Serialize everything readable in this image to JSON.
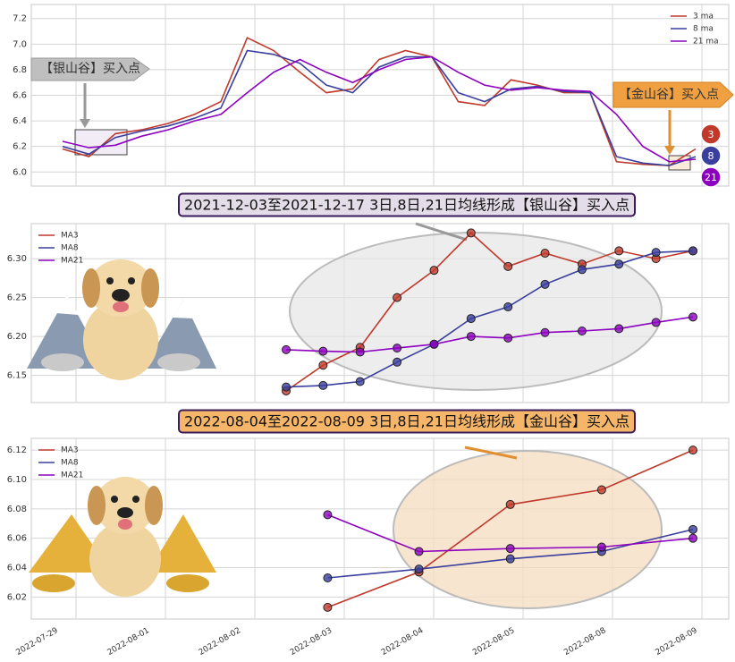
{
  "chart_data": [
    {
      "type": "line",
      "grid": true,
      "legend": "upper right",
      "ylim": [
        5.89,
        7.31
      ],
      "yticks": [
        {
          "value": 6.0,
          "label": "6.0"
        },
        6.2,
        6.4,
        6.6,
        6.8,
        {
          "value": 7.0,
          "label": "7.0"
        },
        7.2
      ],
      "series": [
        {
          "name": "3 ma",
          "color": "#c0392b",
          "values": [
            6.18,
            6.12,
            6.3,
            6.33,
            6.38,
            6.45,
            6.55,
            7.05,
            6.95,
            6.78,
            6.62,
            6.65,
            6.88,
            6.95,
            6.9,
            6.55,
            6.52,
            6.72,
            6.68,
            6.62,
            6.62,
            6.08,
            6.06,
            6.05,
            6.18
          ]
        },
        {
          "name": "8 ma",
          "color": "#3a3f9e",
          "values": [
            6.2,
            6.14,
            6.27,
            6.32,
            6.36,
            6.42,
            6.5,
            6.95,
            6.92,
            6.85,
            6.68,
            6.62,
            6.82,
            6.9,
            6.9,
            6.62,
            6.55,
            6.65,
            6.67,
            6.63,
            6.62,
            6.12,
            6.07,
            6.05,
            6.12
          ]
        },
        {
          "name": "21 ma",
          "color": "#8e00c0",
          "values": [
            6.24,
            6.19,
            6.21,
            6.28,
            6.33,
            6.4,
            6.45,
            6.62,
            6.78,
            6.88,
            6.78,
            6.7,
            6.8,
            6.88,
            6.9,
            6.78,
            6.68,
            6.64,
            6.66,
            6.64,
            6.63,
            6.45,
            6.2,
            6.08,
            6.1
          ]
        }
      ],
      "annotations": [
        "【银山谷】买入点",
        "【金山谷】买入点"
      ],
      "badges": [
        "3",
        "8",
        "21"
      ]
    },
    {
      "type": "line",
      "grid": true,
      "legend": "upper left",
      "title": "2021-12-03至2021-12-17 3日,8日,21日均线形成【银山谷】买入点",
      "ylim": [
        6.115,
        6.345
      ],
      "yticks": [
        6.15,
        {
          "value": 6.2,
          "label": "6.20"
        },
        6.25,
        {
          "value": 6.3,
          "label": "6.30"
        }
      ],
      "series": [
        {
          "name": "MA3",
          "color": "#c0392b",
          "values": [
            6.13,
            6.163,
            6.186,
            6.25,
            6.285,
            6.333,
            6.29,
            6.307,
            6.293,
            6.31,
            6.3,
            6.31
          ]
        },
        {
          "name": "MA8",
          "color": "#3a3f9e",
          "values": [
            6.135,
            6.137,
            6.142,
            6.167,
            6.19,
            6.223,
            6.238,
            6.267,
            6.286,
            6.293,
            6.308,
            6.31
          ]
        },
        {
          "name": "MA21",
          "color": "#8e00c0",
          "values": [
            6.183,
            6.181,
            6.18,
            6.185,
            6.19,
            6.2,
            6.198,
            6.205,
            6.207,
            6.21,
            6.218,
            6.225
          ]
        }
      ]
    },
    {
      "type": "line",
      "grid": true,
      "legend": "upper left",
      "title": "2022-08-04至2022-08-09 3日,8日,21日均线形成【金山谷】买入点",
      "categories": [
        "2022-07-29",
        "2022-08-01",
        "2022-08-02",
        "2022-08-03",
        "2022-08-04",
        "2022-08-05",
        "2022-08-08",
        "2022-08-09"
      ],
      "ylim": [
        6.005,
        6.128
      ],
      "yticks": [
        6.02,
        6.04,
        6.06,
        6.08,
        {
          "value": 6.1,
          "label": "6.10"
        },
        6.12
      ],
      "series": [
        {
          "name": "MA3",
          "color": "#c0392b",
          "values": [
            null,
            null,
            null,
            6.013,
            6.037,
            6.083,
            6.093,
            6.12
          ]
        },
        {
          "name": "MA8",
          "color": "#3a3f9e",
          "values": [
            null,
            null,
            null,
            6.033,
            6.039,
            6.046,
            6.051,
            6.066
          ]
        },
        {
          "name": "MA21",
          "color": "#8e00c0",
          "values": [
            null,
            null,
            null,
            6.076,
            6.051,
            6.053,
            6.054,
            6.06
          ]
        }
      ]
    }
  ]
}
